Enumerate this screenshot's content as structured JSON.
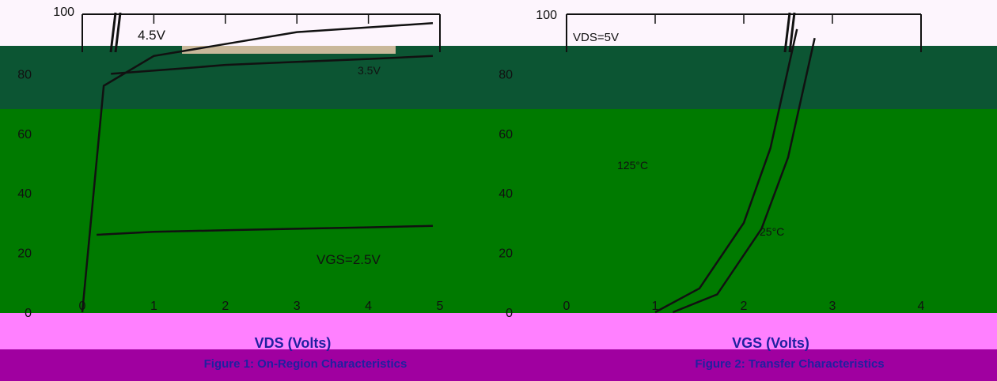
{
  "colors": {
    "bg": "#ffffff",
    "top_band": "#fdf5fd",
    "dark_band": "#0c5533",
    "green_band": "#007a00",
    "pink_band": "#ff80ff",
    "purple_band": "#a000a0",
    "curve": "#111111",
    "blue_caption": "#2020a0"
  },
  "chart_data": [
    {
      "type": "line",
      "title": "",
      "xlabel": "VDS (Volts)",
      "ylabel": "",
      "caption": "Figure 1: On-Region Characteristics",
      "ylim": [
        0,
        100
      ],
      "y_ticks": [
        "100",
        "80",
        "60",
        "40",
        "20",
        "0"
      ],
      "x_ticks": [
        "0",
        "1",
        "2",
        "3",
        "4",
        "5"
      ],
      "series": [
        {
          "name": "4.5V",
          "x": [
            0,
            0.3,
            1,
            2,
            3,
            4.9
          ],
          "y": [
            0,
            76,
            86,
            90,
            94,
            97
          ]
        },
        {
          "name": "3.5V",
          "x": [
            0.4,
            1.5,
            2,
            3,
            4,
            4.9
          ],
          "y": [
            80,
            82,
            83,
            84,
            85,
            86
          ]
        },
        {
          "name": "VGS=2.5V",
          "x": [
            0.2,
            1,
            2,
            3,
            4,
            4.9
          ],
          "y": [
            26,
            27,
            27.5,
            28,
            28.5,
            29
          ]
        }
      ]
    },
    {
      "type": "line",
      "title": "",
      "xlabel": "VGS (Volts)",
      "ylabel": "",
      "caption": "Figure 2: Transfer Characteristics",
      "ylim": [
        0,
        100
      ],
      "y_ticks": [
        "100",
        "80",
        "60",
        "40",
        "20",
        "0"
      ],
      "x_ticks": [
        "0",
        "1",
        "2",
        "3",
        "4"
      ],
      "annotations": [
        "VDS=5V",
        "125°C",
        "25°C"
      ],
      "series": [
        {
          "name": "125°C",
          "x": [
            1,
            1.5,
            2,
            2.3,
            2.6
          ],
          "y": [
            0,
            8,
            30,
            55,
            95
          ]
        },
        {
          "name": "25°C",
          "x": [
            1.2,
            1.7,
            2.2,
            2.5,
            2.8
          ],
          "y": [
            0,
            6,
            28,
            52,
            92
          ]
        }
      ]
    }
  ]
}
